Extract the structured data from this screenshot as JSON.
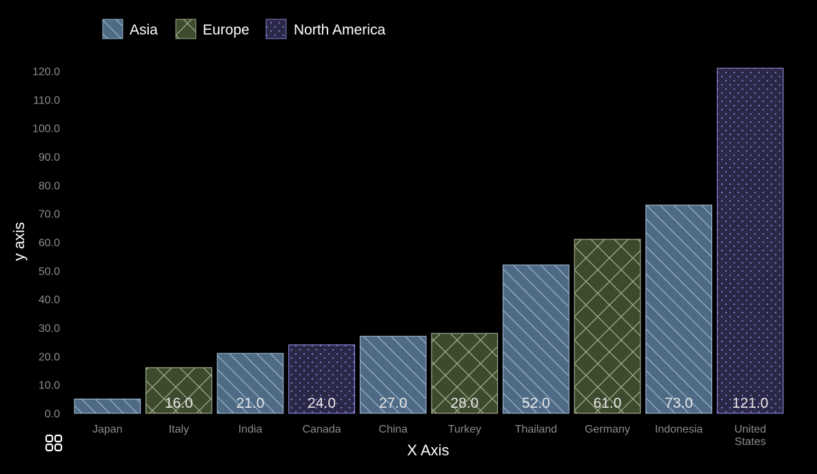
{
  "chart_data": {
    "type": "bar",
    "title": "",
    "xlabel": "X Axis",
    "ylabel": "y axis",
    "ylim": [
      0,
      120
    ],
    "yticks": [
      "0.0",
      "10.0",
      "20.0",
      "30.0",
      "40.0",
      "50.0",
      "60.0",
      "70.0",
      "80.0",
      "90.0",
      "100.0",
      "110.0",
      "120.0"
    ],
    "grid": false,
    "legend_position": "top-left",
    "legend": [
      "Asia",
      "Europe",
      "North America"
    ],
    "categories": [
      "Japan",
      "Italy",
      "India",
      "Canada",
      "China",
      "Turkey",
      "Thailand",
      "Germany",
      "Indonesia",
      "United States"
    ],
    "values": [
      5,
      16,
      21,
      24,
      27,
      28,
      52,
      61,
      73,
      121
    ],
    "data_labels": [
      "",
      "16.0",
      "21.0",
      "24.0",
      "27.0",
      "28.0",
      "52.0",
      "61.0",
      "73.0",
      "121.0"
    ],
    "groups": [
      "Asia",
      "Europe",
      "Asia",
      "North America",
      "Asia",
      "Europe",
      "Asia",
      "Europe",
      "Asia",
      "North America"
    ]
  },
  "series_style": {
    "Asia": {
      "fill": "#4e6a85",
      "stroke": "#9ab4cc",
      "pattern": "diagonal"
    },
    "Europe": {
      "fill": "#3d4a2e",
      "stroke": "#a2ad8c",
      "pattern": "crosshatch"
    },
    "North America": {
      "fill": "#2a2747",
      "stroke": "#8a84d6",
      "pattern": "dots"
    }
  },
  "toolbar": {
    "menu_icon": "grid-menu-icon"
  }
}
